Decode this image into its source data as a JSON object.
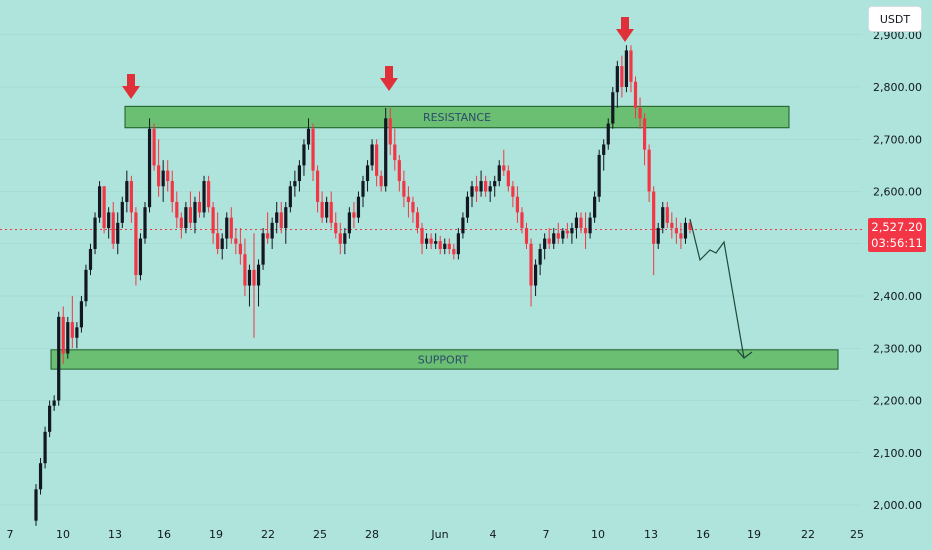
{
  "currency": "USDT",
  "current_price": {
    "value": 2527.2,
    "label": "2,527.20",
    "countdown": "03:56:11",
    "color": "#f23645"
  },
  "colors": {
    "background": "#aee4dc",
    "bullish": "#131722",
    "bearish": "#f23645",
    "zone_fill": "#6abf72",
    "zone_border": "#1e5a28",
    "arrow": "#e0313b",
    "projection": "#1f4a3a"
  },
  "chart_data": {
    "type": "candlestick",
    "y_axis": {
      "ticks": [
        2000,
        2100,
        2200,
        2300,
        2400,
        2500,
        2600,
        2700,
        2800,
        2900
      ],
      "tick_labels": [
        "2,000.00",
        "2,100.00",
        "2,200.00",
        "2,300.00",
        "2,400.00",
        "",
        "2,600.00",
        "2,700.00",
        "2,800.00",
        "2,900.00"
      ],
      "ylim": [
        1960,
        2960
      ]
    },
    "x_axis": {
      "tick_labels": [
        "7",
        "10",
        "13",
        "16",
        "19",
        "22",
        "25",
        "28",
        "Jun",
        "4",
        "7",
        "10",
        "13",
        "16",
        "19",
        "22",
        "25"
      ]
    },
    "zones": [
      {
        "name": "resistance",
        "label": "RESISTANCE",
        "low": 2722,
        "high": 2763
      },
      {
        "name": "support",
        "label": "SUPPORT",
        "low": 2260,
        "high": 2297
      }
    ],
    "rejection_arrows": [
      "May 14",
      "May 29",
      "Jun 11"
    ],
    "projection": [
      [
        2530,
        2545
      ],
      [
        2556,
        2470
      ],
      [
        2561,
        2490
      ],
      [
        2568,
        2464
      ],
      [
        2578,
        2495
      ],
      [
        2626,
        2280
      ]
    ],
    "candles_ohlc": [
      [
        1970,
        2040,
        1960,
        2030
      ],
      [
        2030,
        2090,
        2020,
        2080
      ],
      [
        2080,
        2150,
        2070,
        2140
      ],
      [
        2140,
        2200,
        2130,
        2190
      ],
      [
        2190,
        2210,
        2180,
        2200
      ],
      [
        2200,
        2370,
        2190,
        2360
      ],
      [
        2360,
        2380,
        2270,
        2290
      ],
      [
        2290,
        2360,
        2280,
        2350
      ],
      [
        2350,
        2400,
        2300,
        2320
      ],
      [
        2320,
        2350,
        2300,
        2340
      ],
      [
        2340,
        2400,
        2330,
        2390
      ],
      [
        2390,
        2460,
        2380,
        2450
      ],
      [
        2450,
        2500,
        2440,
        2490
      ],
      [
        2490,
        2560,
        2480,
        2550
      ],
      [
        2550,
        2620,
        2540,
        2610
      ],
      [
        2610,
        2610,
        2520,
        2530
      ],
      [
        2530,
        2570,
        2510,
        2560
      ],
      [
        2560,
        2580,
        2490,
        2500
      ],
      [
        2500,
        2560,
        2480,
        2540
      ],
      [
        2540,
        2590,
        2530,
        2580
      ],
      [
        2580,
        2640,
        2560,
        2620
      ],
      [
        2620,
        2630,
        2540,
        2560
      ],
      [
        2560,
        2570,
        2420,
        2440
      ],
      [
        2440,
        2520,
        2430,
        2510
      ],
      [
        2510,
        2580,
        2500,
        2570
      ],
      [
        2570,
        2740,
        2560,
        2720
      ],
      [
        2720,
        2730,
        2640,
        2650
      ],
      [
        2650,
        2700,
        2590,
        2610
      ],
      [
        2610,
        2660,
        2580,
        2640
      ],
      [
        2640,
        2660,
        2600,
        2620
      ],
      [
        2620,
        2640,
        2560,
        2580
      ],
      [
        2580,
        2600,
        2530,
        2550
      ],
      [
        2550,
        2560,
        2510,
        2530
      ],
      [
        2530,
        2580,
        2520,
        2570
      ],
      [
        2570,
        2600,
        2530,
        2540
      ],
      [
        2540,
        2590,
        2520,
        2580
      ],
      [
        2580,
        2600,
        2550,
        2560
      ],
      [
        2560,
        2630,
        2550,
        2620
      ],
      [
        2620,
        2630,
        2560,
        2570
      ],
      [
        2570,
        2580,
        2500,
        2520
      ],
      [
        2520,
        2560,
        2480,
        2490
      ],
      [
        2490,
        2520,
        2470,
        2510
      ],
      [
        2510,
        2560,
        2490,
        2550
      ],
      [
        2550,
        2570,
        2500,
        2510
      ],
      [
        2510,
        2530,
        2480,
        2500
      ],
      [
        2500,
        2530,
        2460,
        2480
      ],
      [
        2480,
        2510,
        2400,
        2420
      ],
      [
        2420,
        2460,
        2380,
        2450
      ],
      [
        2450,
        2520,
        2320,
        2420
      ],
      [
        2420,
        2470,
        2380,
        2460
      ],
      [
        2460,
        2530,
        2450,
        2520
      ],
      [
        2520,
        2560,
        2500,
        2510
      ],
      [
        2510,
        2550,
        2490,
        2540
      ],
      [
        2540,
        2580,
        2520,
        2560
      ],
      [
        2560,
        2580,
        2520,
        2530
      ],
      [
        2530,
        2580,
        2500,
        2570
      ],
      [
        2570,
        2620,
        2560,
        2610
      ],
      [
        2610,
        2640,
        2590,
        2620
      ],
      [
        2620,
        2660,
        2600,
        2650
      ],
      [
        2650,
        2700,
        2630,
        2690
      ],
      [
        2690,
        2740,
        2680,
        2720
      ],
      [
        2720,
        2730,
        2620,
        2640
      ],
      [
        2640,
        2650,
        2560,
        2580
      ],
      [
        2580,
        2600,
        2540,
        2550
      ],
      [
        2550,
        2590,
        2540,
        2580
      ],
      [
        2580,
        2600,
        2530,
        2540
      ],
      [
        2540,
        2560,
        2510,
        2520
      ],
      [
        2520,
        2540,
        2480,
        2500
      ],
      [
        2500,
        2530,
        2480,
        2520
      ],
      [
        2520,
        2570,
        2510,
        2560
      ],
      [
        2560,
        2580,
        2530,
        2550
      ],
      [
        2550,
        2600,
        2540,
        2590
      ],
      [
        2590,
        2630,
        2570,
        2620
      ],
      [
        2620,
        2660,
        2600,
        2650
      ],
      [
        2650,
        2700,
        2640,
        2690
      ],
      [
        2690,
        2700,
        2610,
        2630
      ],
      [
        2630,
        2640,
        2600,
        2610
      ],
      [
        2610,
        2760,
        2600,
        2740
      ],
      [
        2740,
        2760,
        2670,
        2690
      ],
      [
        2690,
        2720,
        2640,
        2660
      ],
      [
        2660,
        2670,
        2600,
        2620
      ],
      [
        2620,
        2640,
        2570,
        2590
      ],
      [
        2590,
        2610,
        2550,
        2580
      ],
      [
        2580,
        2590,
        2540,
        2560
      ],
      [
        2560,
        2570,
        2520,
        2530
      ],
      [
        2530,
        2540,
        2480,
        2500
      ],
      [
        2500,
        2520,
        2490,
        2510
      ],
      [
        2510,
        2520,
        2490,
        2500
      ],
      [
        2500,
        2520,
        2490,
        2505
      ],
      [
        2505,
        2515,
        2480,
        2490
      ],
      [
        2490,
        2510,
        2480,
        2500
      ],
      [
        2500,
        2510,
        2480,
        2490
      ],
      [
        2490,
        2500,
        2470,
        2480
      ],
      [
        2480,
        2530,
        2470,
        2520
      ],
      [
        2520,
        2560,
        2510,
        2550
      ],
      [
        2550,
        2600,
        2540,
        2590
      ],
      [
        2590,
        2620,
        2570,
        2610
      ],
      [
        2610,
        2630,
        2580,
        2600
      ],
      [
        2600,
        2640,
        2590,
        2620
      ],
      [
        2620,
        2630,
        2590,
        2600
      ],
      [
        2600,
        2620,
        2580,
        2610
      ],
      [
        2610,
        2630,
        2590,
        2620
      ],
      [
        2620,
        2660,
        2610,
        2650
      ],
      [
        2650,
        2680,
        2630,
        2640
      ],
      [
        2640,
        2650,
        2600,
        2610
      ],
      [
        2610,
        2620,
        2570,
        2590
      ],
      [
        2590,
        2610,
        2540,
        2560
      ],
      [
        2560,
        2570,
        2520,
        2530
      ],
      [
        2530,
        2540,
        2490,
        2500
      ],
      [
        2500,
        2510,
        2380,
        2420
      ],
      [
        2420,
        2470,
        2400,
        2460
      ],
      [
        2460,
        2500,
        2440,
        2490
      ],
      [
        2490,
        2520,
        2470,
        2510
      ],
      [
        2510,
        2530,
        2490,
        2500
      ],
      [
        2500,
        2530,
        2490,
        2520
      ],
      [
        2520,
        2540,
        2500,
        2510
      ],
      [
        2510,
        2530,
        2500,
        2525
      ],
      [
        2525,
        2540,
        2510,
        2520
      ],
      [
        2520,
        2540,
        2500,
        2530
      ],
      [
        2530,
        2560,
        2510,
        2550
      ],
      [
        2550,
        2560,
        2520,
        2530
      ],
      [
        2530,
        2560,
        2490,
        2520
      ],
      [
        2520,
        2560,
        2510,
        2550
      ],
      [
        2550,
        2600,
        2540,
        2590
      ],
      [
        2590,
        2680,
        2580,
        2670
      ],
      [
        2670,
        2700,
        2640,
        2690
      ],
      [
        2690,
        2740,
        2680,
        2730
      ],
      [
        2730,
        2800,
        2720,
        2790
      ],
      [
        2790,
        2850,
        2760,
        2840
      ],
      [
        2840,
        2860,
        2780,
        2800
      ],
      [
        2800,
        2880,
        2790,
        2870
      ],
      [
        2870,
        2880,
        2790,
        2810
      ],
      [
        2810,
        2820,
        2740,
        2760
      ],
      [
        2760,
        2780,
        2720,
        2740
      ],
      [
        2740,
        2750,
        2650,
        2680
      ],
      [
        2680,
        2690,
        2580,
        2600
      ],
      [
        2600,
        2610,
        2440,
        2500
      ],
      [
        2500,
        2540,
        2490,
        2530
      ],
      [
        2530,
        2580,
        2520,
        2570
      ],
      [
        2570,
        2580,
        2530,
        2540
      ],
      [
        2540,
        2560,
        2510,
        2530
      ],
      [
        2530,
        2550,
        2500,
        2520
      ],
      [
        2520,
        2540,
        2490,
        2510
      ],
      [
        2510,
        2550,
        2500,
        2540
      ],
      [
        2540,
        2545,
        2520,
        2527
      ]
    ]
  }
}
